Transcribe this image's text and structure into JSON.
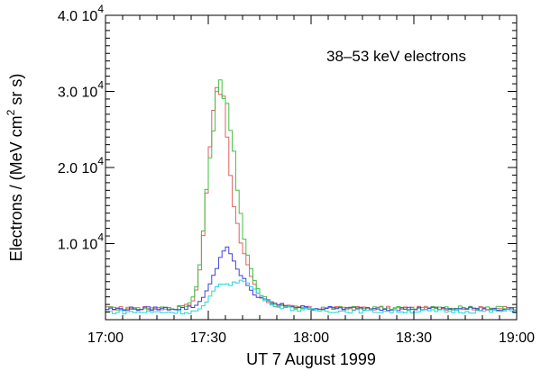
{
  "chart_data": {
    "type": "line",
    "step": true,
    "annotation": "38–53 keV electrons",
    "xlabel": "UT  7 August 1999",
    "ylabel_left": "Electrons  / (MeV  cm",
    "ylabel_sup1": "2",
    "ylabel_mid": " sr s)",
    "xlim": [
      "17:00",
      "19:00"
    ],
    "ylim": [
      0,
      40000
    ],
    "x_ticks": [
      "17:00",
      "17:30",
      "18:00",
      "18:30",
      "19:00"
    ],
    "y_ticks": [
      {
        "value": 10000,
        "mantissa": "1.0 10",
        "exp": "4"
      },
      {
        "value": 20000,
        "mantissa": "2.0 10",
        "exp": "4"
      },
      {
        "value": 30000,
        "mantissa": "3.0 10",
        "exp": "4"
      },
      {
        "value": 40000,
        "mantissa": "4.0 10",
        "exp": "4"
      }
    ],
    "series": [
      {
        "color": "#e06060",
        "anchors": [
          [
            0,
            1500
          ],
          [
            20,
            1500
          ],
          [
            25,
            2000
          ],
          [
            27,
            4500
          ],
          [
            29,
            13000
          ],
          [
            31,
            27000
          ],
          [
            33,
            32000
          ],
          [
            35,
            27000
          ],
          [
            37,
            16000
          ],
          [
            39,
            11000
          ],
          [
            41,
            8000
          ],
          [
            43,
            5000
          ],
          [
            45,
            3000
          ],
          [
            50,
            1800
          ],
          [
            60,
            1500
          ],
          [
            120,
            1500
          ]
        ]
      },
      {
        "color": "#40c040",
        "anchors": [
          [
            0,
            1500
          ],
          [
            20,
            1500
          ],
          [
            25,
            2200
          ],
          [
            27,
            5000
          ],
          [
            29,
            14000
          ],
          [
            31,
            24000
          ],
          [
            33,
            31000
          ],
          [
            35,
            30000
          ],
          [
            37,
            24000
          ],
          [
            39,
            15000
          ],
          [
            41,
            9000
          ],
          [
            43,
            6000
          ],
          [
            45,
            3500
          ],
          [
            50,
            1900
          ],
          [
            60,
            1500
          ],
          [
            120,
            1600
          ]
        ]
      },
      {
        "color": "#4040d8",
        "anchors": [
          [
            0,
            1400
          ],
          [
            24,
            1500
          ],
          [
            27,
            2000
          ],
          [
            29,
            3500
          ],
          [
            31,
            5000
          ],
          [
            33,
            7500
          ],
          [
            35,
            10000
          ],
          [
            37,
            8000
          ],
          [
            39,
            6000
          ],
          [
            41,
            5000
          ],
          [
            43,
            3500
          ],
          [
            45,
            2800
          ],
          [
            50,
            2000
          ],
          [
            60,
            1500
          ],
          [
            120,
            1400
          ]
        ]
      },
      {
        "color": "#20d8d8",
        "anchors": [
          [
            0,
            1000
          ],
          [
            25,
            1000
          ],
          [
            28,
            1400
          ],
          [
            30,
            2500
          ],
          [
            32,
            4000
          ],
          [
            34,
            5000
          ],
          [
            36,
            4500
          ],
          [
            38,
            4800
          ],
          [
            40,
            5500
          ],
          [
            42,
            4500
          ],
          [
            44,
            3800
          ],
          [
            46,
            2800
          ],
          [
            50,
            1800
          ],
          [
            56,
            1300
          ],
          [
            70,
            1100
          ],
          [
            120,
            1100
          ]
        ]
      }
    ]
  }
}
